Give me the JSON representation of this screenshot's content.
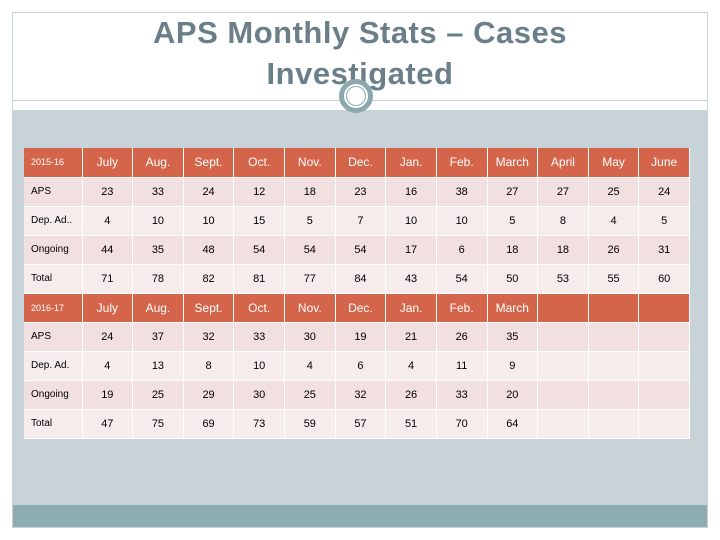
{
  "title_line1": "APS Monthly Stats – Cases",
  "title_line2": "Investigated",
  "table_2015": {
    "year_label": "2015-16",
    "months": [
      "July",
      "Aug.",
      "Sept.",
      "Oct.",
      "Nov.",
      "Dec.",
      "Jan.",
      "Feb.",
      "March",
      "April",
      "May",
      "June"
    ],
    "rows": [
      {
        "label": "APS",
        "values": [
          "23",
          "33",
          "24",
          "12",
          "18",
          "23",
          "16",
          "38",
          "27",
          "27",
          "25",
          "24"
        ]
      },
      {
        "label": "Dep. Ad..",
        "values": [
          "4",
          "10",
          "10",
          "15",
          "5",
          "7",
          "10",
          "10",
          "5",
          "8",
          "4",
          "5"
        ]
      },
      {
        "label": "Ongoing",
        "values": [
          "44",
          "35",
          "48",
          "54",
          "54",
          "54",
          "17",
          "6",
          "18",
          "18",
          "26",
          "31"
        ]
      },
      {
        "label": "Total",
        "values": [
          "71",
          "78",
          "82",
          "81",
          "77",
          "84",
          "43",
          "54",
          "50",
          "53",
          "55",
          "60"
        ]
      }
    ]
  },
  "table_2016": {
    "year_label": "2016-17",
    "months": [
      "July",
      "Aug.",
      "Sept.",
      "Oct.",
      "Nov.",
      "Dec.",
      "Jan.",
      "Feb.",
      "March",
      "",
      "",
      ""
    ],
    "rows": [
      {
        "label": "APS",
        "values": [
          "24",
          "37",
          "32",
          "33",
          "30",
          "19",
          "21",
          "26",
          "35",
          "",
          "",
          ""
        ]
      },
      {
        "label": "Dep. Ad.",
        "values": [
          "4",
          "13",
          "8",
          "10",
          "4",
          "6",
          "4",
          "11",
          "9",
          "",
          "",
          ""
        ]
      },
      {
        "label": "Ongoing",
        "values": [
          "19",
          "25",
          "29",
          "30",
          "25",
          "32",
          "26",
          "33",
          "20",
          "",
          "",
          ""
        ]
      },
      {
        "label": "Total",
        "values": [
          "47",
          "75",
          "69",
          "73",
          "59",
          "57",
          "51",
          "70",
          "64",
          "",
          "",
          ""
        ]
      }
    ]
  },
  "colors": {
    "header": "#d4644a",
    "row_light": "#f7ecec",
    "row_mid": "#f2e0e0",
    "title": "#6b7f88",
    "accent": "#8aa8ad"
  }
}
